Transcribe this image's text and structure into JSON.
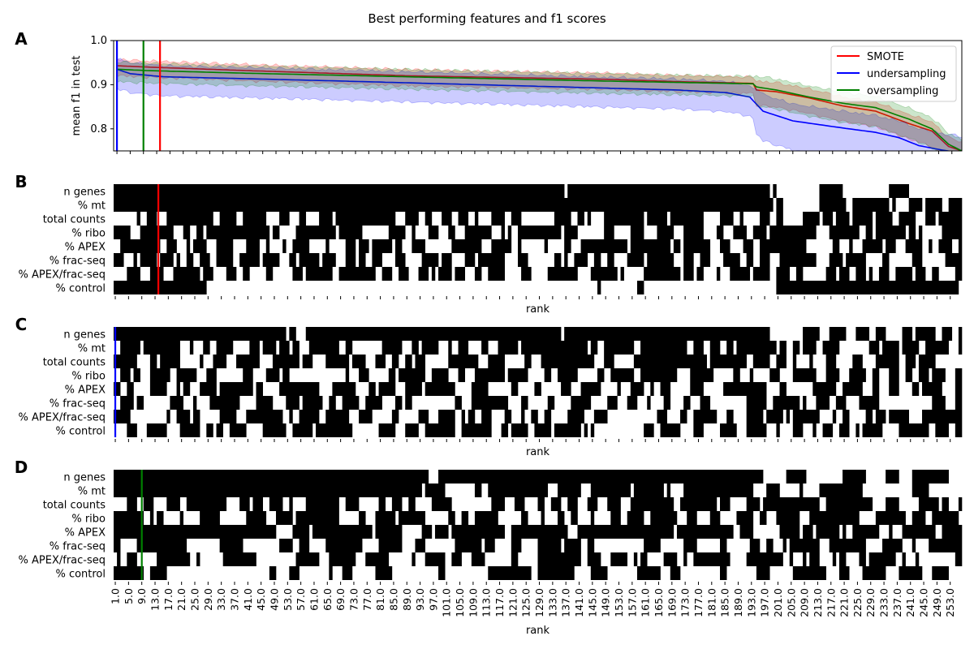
{
  "figure": {
    "title": "Best performing features and f1 scores",
    "panel_letters": [
      "A",
      "B",
      "C",
      "D"
    ],
    "xlabel": "rank"
  },
  "chart_data": [
    {
      "panel": "A",
      "type": "line",
      "ylabel": "mean f1 in test",
      "xlim": [
        0,
        256
      ],
      "ylim": [
        0.75,
        1.0
      ],
      "yticks": [
        "0.8",
        "0.9",
        "1.0"
      ],
      "grid": false,
      "legend_position": "top-right",
      "series": [
        {
          "name": "SMOTE",
          "color": "#ff0000",
          "knots": [
            [
              1,
              0.943
            ],
            [
              10,
              0.94
            ],
            [
              40,
              0.932
            ],
            [
              90,
              0.92
            ],
            [
              150,
              0.912
            ],
            [
              170,
              0.907
            ],
            [
              193,
              0.903
            ],
            [
              194,
              0.888
            ],
            [
              200,
              0.884
            ],
            [
              210,
              0.87
            ],
            [
              220,
              0.852
            ],
            [
              230,
              0.84
            ],
            [
              240,
              0.812
            ],
            [
              247,
              0.795
            ],
            [
              252,
              0.76
            ],
            [
              256,
              0.75
            ]
          ],
          "band": 0.02
        },
        {
          "name": "undersampling",
          "color": "#0000ff",
          "knots": [
            [
              1,
              0.935
            ],
            [
              5,
              0.925
            ],
            [
              15,
              0.918
            ],
            [
              60,
              0.91
            ],
            [
              100,
              0.902
            ],
            [
              150,
              0.892
            ],
            [
              170,
              0.888
            ],
            [
              185,
              0.882
            ],
            [
              192,
              0.872
            ],
            [
              196,
              0.84
            ],
            [
              205,
              0.818
            ],
            [
              220,
              0.802
            ],
            [
              230,
              0.792
            ],
            [
              237,
              0.78
            ],
            [
              243,
              0.762
            ],
            [
              250,
              0.752
            ],
            [
              256,
              0.745
            ]
          ],
          "band": 0.04
        },
        {
          "name": "oversampling",
          "color": "#008000",
          "knots": [
            [
              1,
              0.935
            ],
            [
              10,
              0.932
            ],
            [
              40,
              0.926
            ],
            [
              100,
              0.916
            ],
            [
              150,
              0.908
            ],
            [
              193,
              0.902
            ],
            [
              194,
              0.895
            ],
            [
              200,
              0.888
            ],
            [
              210,
              0.872
            ],
            [
              220,
              0.858
            ],
            [
              230,
              0.848
            ],
            [
              240,
              0.822
            ],
            [
              247,
              0.8
            ],
            [
              252,
              0.765
            ],
            [
              256,
              0.75
            ]
          ],
          "band": 0.025
        }
      ],
      "vlines": [
        {
          "x": 1,
          "color": "#0000ff"
        },
        {
          "x": 9,
          "color": "#008000"
        },
        {
          "x": 14,
          "color": "#ff0000"
        }
      ]
    },
    {
      "panel": "B",
      "type": "heatmap",
      "marker_x": 14,
      "marker_color": "#ff0000",
      "rows": [
        {
          "label": "n genes",
          "cutoff": 97,
          "left": 0.97,
          "right": 0.35,
          "len": 4,
          "seed": 11
        },
        {
          "label": "% mt",
          "cutoff": 49,
          "left": 0.97,
          "right": 0.55,
          "len": 3,
          "seed": 12
        },
        {
          "label": "total counts",
          "cutoff": 0,
          "left": 0.55,
          "right": 0.55,
          "len": 2,
          "seed": 13
        },
        {
          "label": "% ribo",
          "cutoff": 0,
          "left": 0.5,
          "right": 0.5,
          "len": 2,
          "seed": 14
        },
        {
          "label": "% APEX",
          "cutoff": 0,
          "left": 0.55,
          "right": 0.5,
          "len": 2,
          "seed": 15
        },
        {
          "label": "% frac-seq",
          "cutoff": 0,
          "left": 0.5,
          "right": 0.45,
          "len": 2,
          "seed": 16
        },
        {
          "label": "% APEX/frac-seq",
          "cutoff": 0,
          "left": 0.55,
          "right": 0.45,
          "len": 2,
          "seed": 17
        },
        {
          "label": "% control",
          "cutoff": 28,
          "left": 0.05,
          "right": 0.8,
          "len": 5,
          "seed": 18
        }
      ]
    },
    {
      "panel": "C",
      "type": "heatmap",
      "marker_x": 1,
      "marker_color": "#0000ff",
      "rows": [
        {
          "label": "n genes",
          "cutoff": 26,
          "left": 0.97,
          "right": 0.45,
          "len": 2,
          "seed": 21
        },
        {
          "label": "% mt",
          "cutoff": 0,
          "left": 0.6,
          "right": 0.55,
          "len": 2,
          "seed": 22
        },
        {
          "label": "total counts",
          "cutoff": 0,
          "left": 0.5,
          "right": 0.45,
          "len": 2,
          "seed": 23
        },
        {
          "label": "% ribo",
          "cutoff": 0,
          "left": 0.5,
          "right": 0.5,
          "len": 2,
          "seed": 24
        },
        {
          "label": "% APEX",
          "cutoff": 0,
          "left": 0.45,
          "right": 0.5,
          "len": 2,
          "seed": 25
        },
        {
          "label": "% frac-seq",
          "cutoff": 0,
          "left": 0.45,
          "right": 0.5,
          "len": 2,
          "seed": 26
        },
        {
          "label": "% APEX/frac-seq",
          "cutoff": 0,
          "left": 0.45,
          "right": 0.5,
          "len": 2,
          "seed": 27
        },
        {
          "label": "% control",
          "cutoff": 0,
          "left": 0.5,
          "right": 0.55,
          "len": 2,
          "seed": 28
        }
      ]
    },
    {
      "panel": "D",
      "type": "heatmap",
      "marker_x": 9,
      "marker_color": "#008000",
      "rows": [
        {
          "label": "n genes",
          "cutoff": 95,
          "left": 0.97,
          "right": 0.3,
          "len": 4,
          "seed": 31
        },
        {
          "label": "% mt",
          "cutoff": 79,
          "left": 0.85,
          "right": 0.5,
          "len": 3,
          "seed": 32
        },
        {
          "label": "total counts",
          "cutoff": 0,
          "left": 0.55,
          "right": 0.6,
          "len": 2,
          "seed": 33
        },
        {
          "label": "% ribo",
          "cutoff": 0,
          "left": 0.5,
          "right": 0.55,
          "len": 2,
          "seed": 34
        },
        {
          "label": "% APEX",
          "cutoff": 47,
          "left": 0.85,
          "right": 0.45,
          "len": 2,
          "seed": 35
        },
        {
          "label": "% frac-seq",
          "cutoff": 0,
          "left": 0.45,
          "right": 0.5,
          "len": 2,
          "seed": 36
        },
        {
          "label": "% APEX/frac-seq",
          "cutoff": 0,
          "left": 0.5,
          "right": 0.45,
          "len": 2,
          "seed": 37
        },
        {
          "label": "% control",
          "cutoff": 0,
          "left": 0.4,
          "right": 0.55,
          "len": 4,
          "seed": 38
        }
      ]
    }
  ],
  "x_tick_labels": [
    "1.0",
    "5.0",
    "9.0",
    "13.0",
    "17.0",
    "21.0",
    "25.0",
    "29.0",
    "33.0",
    "37.0",
    "41.0",
    "45.0",
    "49.0",
    "53.0",
    "57.0",
    "61.0",
    "65.0",
    "69.0",
    "73.0",
    "77.0",
    "81.0",
    "85.0",
    "89.0",
    "93.0",
    "97.0",
    "101.0",
    "105.0",
    "109.0",
    "113.0",
    "117.0",
    "121.0",
    "125.0",
    "129.0",
    "133.0",
    "137.0",
    "141.0",
    "145.0",
    "149.0",
    "153.0",
    "157.0",
    "161.0",
    "165.0",
    "169.0",
    "173.0",
    "177.0",
    "181.0",
    "185.0",
    "189.0",
    "193.0",
    "197.0",
    "201.0",
    "205.0",
    "209.0",
    "213.0",
    "217.0",
    "221.0",
    "225.0",
    "229.0",
    "233.0",
    "237.0",
    "241.0",
    "245.0",
    "249.0",
    "253.0"
  ]
}
